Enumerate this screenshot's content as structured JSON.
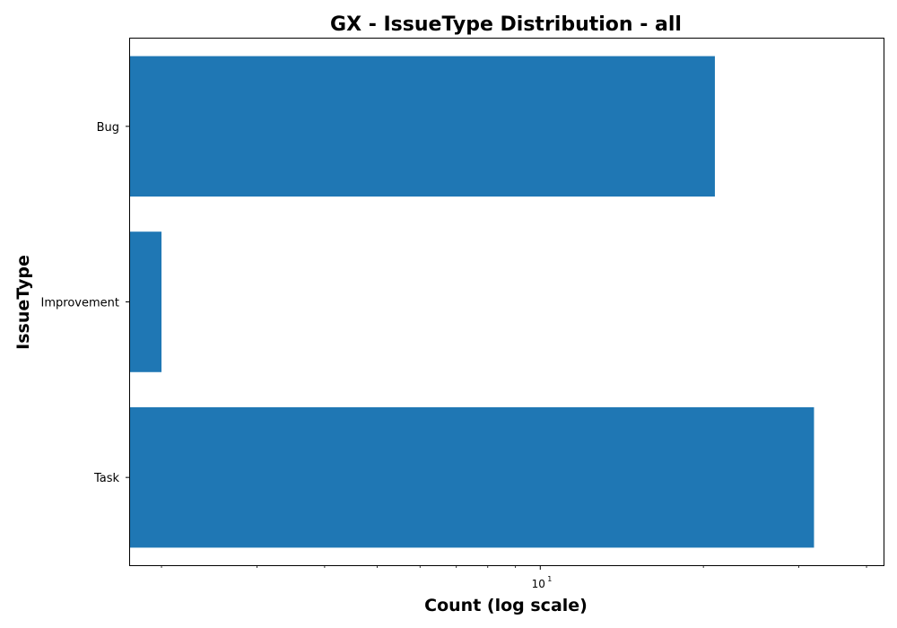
{
  "chart_data": {
    "type": "bar",
    "orientation": "horizontal",
    "title": "GX - IssueType Distribution - all",
    "xlabel": "Count (log scale)",
    "ylabel": "IssueType",
    "x_scale": "log",
    "xlim": [
      1.75,
      43
    ],
    "categories": [
      "Bug",
      "Improvement",
      "Task"
    ],
    "values": [
      21,
      2,
      32
    ],
    "x_major_tick": {
      "value": 10,
      "label_base": "10",
      "label_exponent": "1"
    },
    "x_minor_ticks": [
      2,
      3,
      4,
      5,
      6,
      7,
      8,
      9,
      20,
      30,
      40
    ],
    "bar_color": "#1f77b4",
    "grid": false,
    "legend": "none"
  }
}
